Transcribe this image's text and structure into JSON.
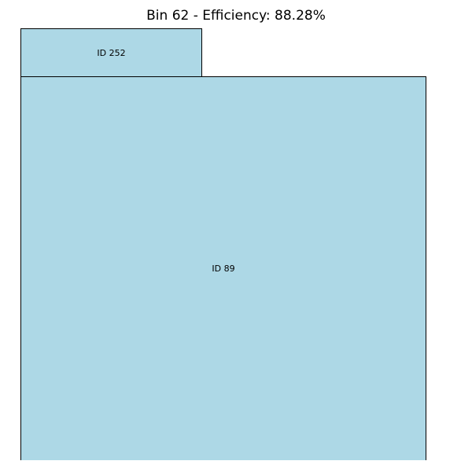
{
  "title": "Bin 62 - Efficiency: 88.28%",
  "colors": {
    "piece_fill": "#add8e6",
    "piece_border": "#000000",
    "background": "#ffffff"
  },
  "pieces": [
    {
      "label": "ID 252"
    },
    {
      "label": "ID 89"
    }
  ]
}
